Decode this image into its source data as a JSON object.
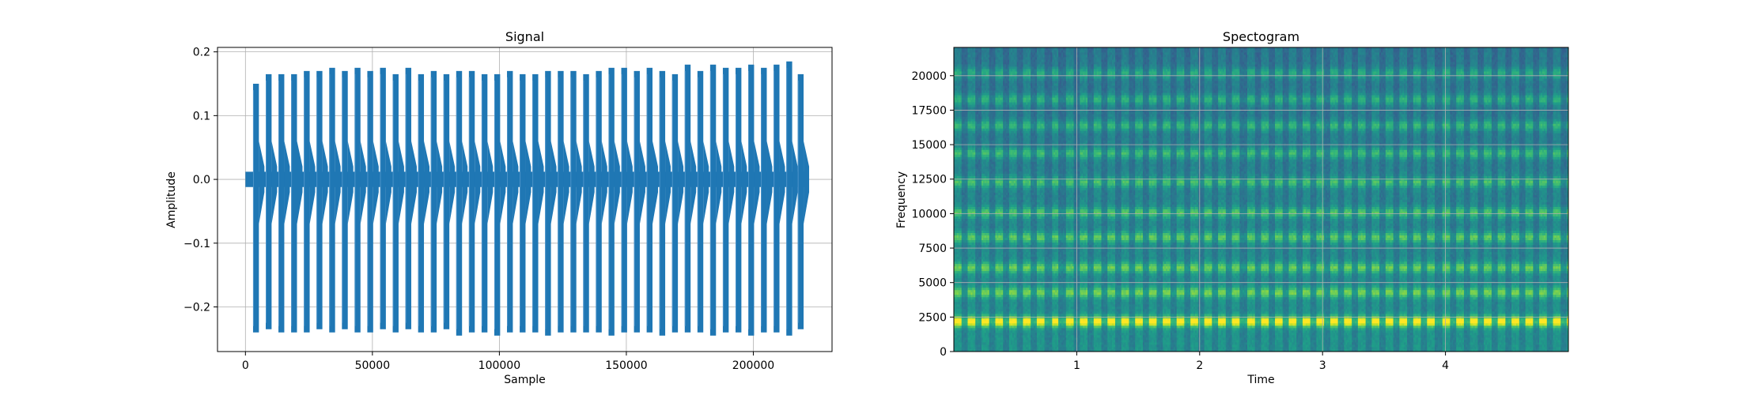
{
  "chart_data": [
    {
      "type": "line",
      "title": "Signal",
      "xlabel": "Sample",
      "ylabel": "Amplitude",
      "xlim": [
        -11000,
        231000
      ],
      "ylim": [
        -0.27,
        0.207
      ],
      "xticks": [
        0,
        50000,
        100000,
        150000,
        200000
      ],
      "xtick_labels": [
        "0",
        "50000",
        "100000",
        "150000",
        "200000"
      ],
      "yticks": [
        -0.2,
        -0.1,
        0.0,
        0.1,
        0.2
      ],
      "ytick_labels": [
        "−0.2",
        "−0.1",
        "0.0",
        "0.1",
        "0.2"
      ],
      "grid": true,
      "color": "#1f77b4",
      "sample_range": [
        0,
        220500
      ],
      "baseline_amplitude": 0.012,
      "burst_count": 44,
      "burst_period_samples": 5000,
      "burst_starts": [
        3000,
        8000,
        13000,
        18000,
        23000,
        28000,
        33000,
        38000,
        43000,
        48000,
        53000,
        58000,
        63000,
        68000,
        73000,
        78000,
        83000,
        88000,
        93000,
        98000,
        103000,
        108000,
        113000,
        118000,
        123000,
        128000,
        133000,
        138000,
        143000,
        148000,
        153000,
        158000,
        163000,
        168000,
        173000,
        178000,
        183000,
        188000,
        193000,
        198000,
        203000,
        208000,
        213000,
        217500
      ],
      "burst_max": [
        0.15,
        0.165,
        0.165,
        0.165,
        0.17,
        0.17,
        0.175,
        0.17,
        0.175,
        0.17,
        0.175,
        0.165,
        0.175,
        0.165,
        0.17,
        0.165,
        0.17,
        0.17,
        0.165,
        0.165,
        0.17,
        0.165,
        0.165,
        0.17,
        0.17,
        0.17,
        0.165,
        0.17,
        0.175,
        0.175,
        0.17,
        0.175,
        0.17,
        0.165,
        0.18,
        0.17,
        0.18,
        0.175,
        0.175,
        0.18,
        0.175,
        0.18,
        0.185,
        0.165
      ],
      "burst_min": [
        -0.24,
        -0.235,
        -0.24,
        -0.24,
        -0.24,
        -0.235,
        -0.24,
        -0.235,
        -0.24,
        -0.24,
        -0.235,
        -0.24,
        -0.235,
        -0.24,
        -0.24,
        -0.235,
        -0.245,
        -0.24,
        -0.24,
        -0.245,
        -0.24,
        -0.24,
        -0.24,
        -0.245,
        -0.24,
        -0.24,
        -0.24,
        -0.24,
        -0.245,
        -0.24,
        -0.24,
        -0.24,
        -0.245,
        -0.24,
        -0.24,
        -0.24,
        -0.245,
        -0.24,
        -0.24,
        -0.245,
        -0.24,
        -0.24,
        -0.245,
        -0.235
      ]
    },
    {
      "type": "heatmap",
      "title": "Spectogram",
      "xlabel": "Time",
      "ylabel": "Frequency",
      "xlim": [
        0,
        5.0
      ],
      "ylim": [
        0,
        22050
      ],
      "xticks": [
        1,
        2,
        3,
        4
      ],
      "xtick_labels": [
        "1",
        "2",
        "3",
        "4"
      ],
      "yticks": [
        0,
        2500,
        5000,
        7500,
        10000,
        12500,
        15000,
        17500,
        20000
      ],
      "ytick_labels": [
        "0",
        "2500",
        "5000",
        "7500",
        "10000",
        "12500",
        "15000",
        "17500",
        "20000"
      ],
      "grid": true,
      "colormap": "viridis",
      "strong_band_hz": 2200,
      "harmonic_bands_hz": [
        2200,
        4300,
        6100,
        8300,
        10100,
        12300,
        14400,
        16400,
        18300,
        20200
      ],
      "pulse_count": 44,
      "pulse_period_s": 0.1134
    }
  ]
}
